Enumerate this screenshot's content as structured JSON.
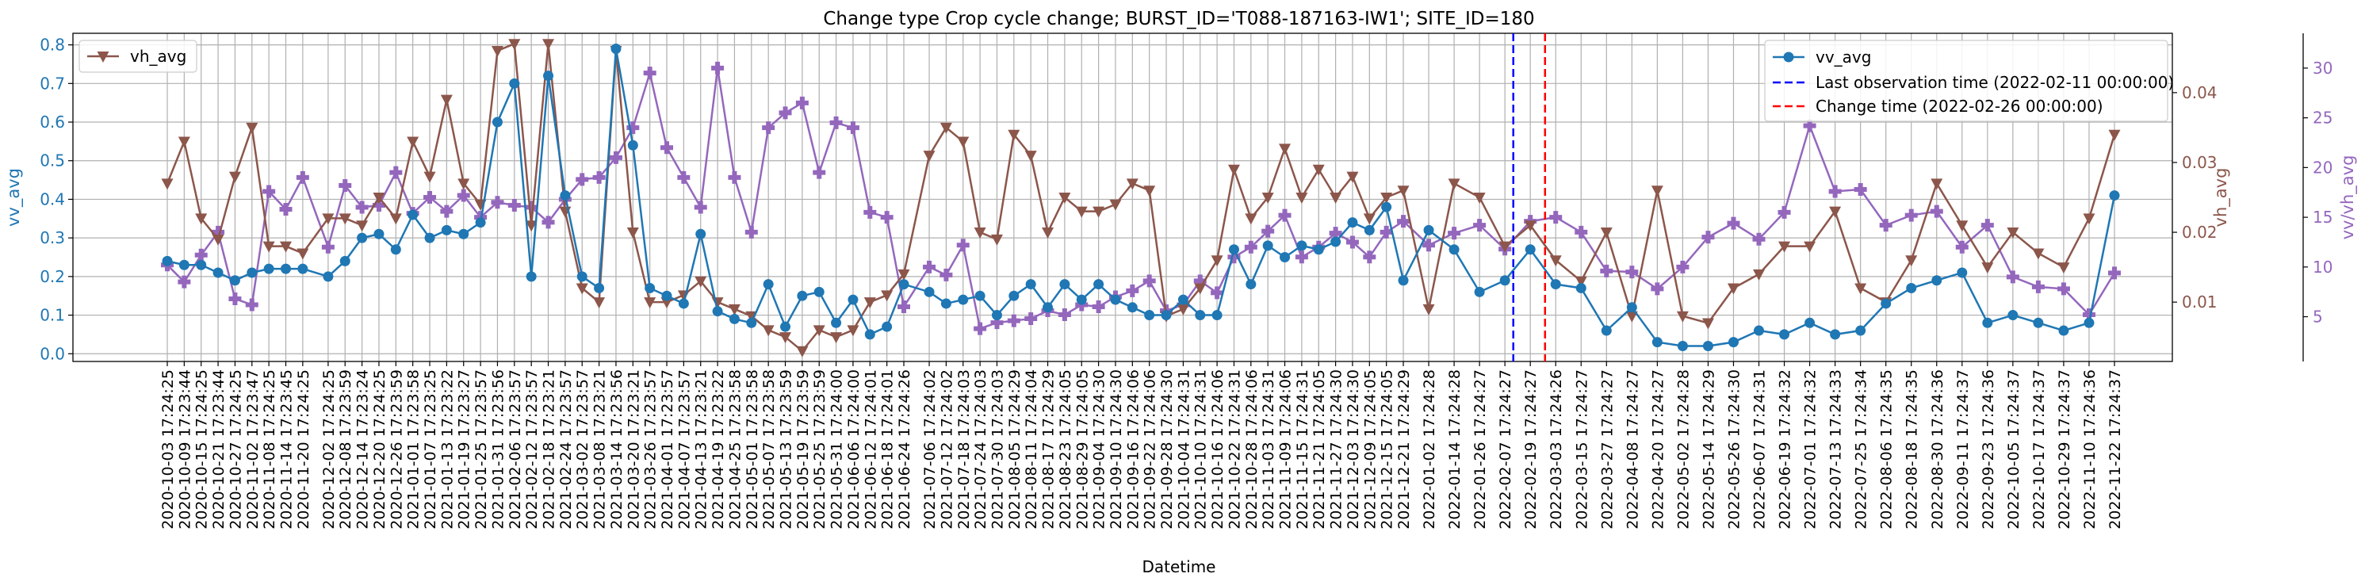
{
  "chart_data": {
    "type": "line",
    "title": "Change type Crop cycle change; BURST_ID='T088-187163-IW1'; SITE_ID=180",
    "xlabel": "Datetime",
    "x_ticks": [
      "2020-10-03 17:24:25",
      "2020-10-09 17:23:44",
      "2020-10-15 17:24:25",
      "2020-10-21 17:23:44",
      "2020-10-27 17:24:25",
      "2020-11-02 17:23:47",
      "2020-11-08 17:24:25",
      "2020-11-14 17:23:45",
      "2020-11-20 17:24:25",
      "2020-12-02 17:24:25",
      "2020-12-08 17:23:59",
      "2020-12-14 17:23:24",
      "2020-12-20 17:24:25",
      "2020-12-26 17:23:59",
      "2021-01-01 17:23:58",
      "2021-01-07 17:23:25",
      "2021-01-13 17:23:22",
      "2021-01-19 17:23:27",
      "2021-01-25 17:23:57",
      "2021-01-31 17:23:56",
      "2021-02-06 17:23:57",
      "2021-02-12 17:23:57",
      "2021-02-18 17:23:21",
      "2021-02-24 17:23:57",
      "2021-03-02 17:23:57",
      "2021-03-08 17:23:21",
      "2021-03-14 17:23:56",
      "2021-03-20 17:23:21",
      "2021-03-26 17:23:57",
      "2021-04-01 17:23:57",
      "2021-04-07 17:23:57",
      "2021-04-13 17:23:21",
      "2021-04-19 17:23:22",
      "2021-04-25 17:23:58",
      "2021-05-01 17:23:58",
      "2021-05-07 17:23:58",
      "2021-05-13 17:23:59",
      "2021-05-19 17:23:59",
      "2021-05-25 17:23:59",
      "2021-05-31 17:24:00",
      "2021-06-06 17:24:00",
      "2021-06-12 17:24:01",
      "2021-06-18 17:24:01",
      "2021-06-24 17:24:26",
      "2021-07-06 17:24:02",
      "2021-07-12 17:24:02",
      "2021-07-18 17:24:03",
      "2021-07-24 17:24:03",
      "2021-07-30 17:24:03",
      "2021-08-05 17:24:29",
      "2021-08-11 17:24:04",
      "2021-08-17 17:24:29",
      "2021-08-23 17:24:05",
      "2021-08-29 17:24:05",
      "2021-09-04 17:24:30",
      "2021-09-10 17:24:30",
      "2021-09-16 17:24:06",
      "2021-09-22 17:24:06",
      "2021-09-28 17:24:30",
      "2021-10-04 17:24:31",
      "2021-10-10 17:24:31",
      "2021-10-16 17:24:06",
      "2021-10-22 17:24:31",
      "2021-10-28 17:24:06",
      "2021-11-03 17:24:31",
      "2021-11-09 17:24:06",
      "2021-11-15 17:24:31",
      "2021-11-21 17:24:05",
      "2021-11-27 17:24:30",
      "2021-12-03 17:24:30",
      "2021-12-09 17:24:05",
      "2021-12-15 17:24:05",
      "2021-12-21 17:24:29",
      "2022-01-02 17:24:28",
      "2022-01-14 17:24:28",
      "2022-01-26 17:24:27",
      "2022-02-07 17:24:27",
      "2022-02-19 17:24:27",
      "2022-03-03 17:24:26",
      "2022-03-15 17:24:27",
      "2022-03-27 17:24:27",
      "2022-04-08 17:24:27",
      "2022-04-20 17:24:27",
      "2022-05-02 17:24:28",
      "2022-05-14 17:24:29",
      "2022-05-26 17:24:30",
      "2022-06-07 17:24:31",
      "2022-06-19 17:24:32",
      "2022-07-01 17:24:32",
      "2022-07-13 17:24:33",
      "2022-07-25 17:24:34",
      "2022-08-06 17:24:35",
      "2022-08-18 17:24:35",
      "2022-08-30 17:24:36",
      "2022-09-11 17:24:37",
      "2022-09-23 17:24:36",
      "2022-10-05 17:24:37",
      "2022-10-17 17:24:37",
      "2022-10-29 17:24:37",
      "2022-11-10 17:24:36",
      "2022-11-22 17:24:37"
    ],
    "series": [
      {
        "name": "vv_avg",
        "axis": "left",
        "color": "#1f77b4",
        "marker": "circle",
        "values": [
          0.24,
          0.23,
          0.23,
          0.21,
          0.19,
          0.21,
          0.22,
          0.22,
          0.22,
          0.2,
          0.24,
          0.3,
          0.31,
          0.27,
          0.36,
          0.3,
          0.32,
          0.31,
          0.34,
          0.6,
          0.7,
          0.2,
          0.72,
          0.41,
          0.2,
          0.17,
          0.79,
          0.54,
          0.17,
          0.15,
          0.13,
          0.31,
          0.11,
          0.09,
          0.08,
          0.18,
          0.07,
          0.15,
          0.16,
          0.08,
          0.14,
          0.05,
          0.07,
          0.18,
          0.16,
          0.13,
          0.14,
          0.15,
          0.1,
          0.15,
          0.18,
          0.12,
          0.18,
          0.14,
          0.18,
          0.14,
          0.12,
          0.1,
          0.1,
          0.14,
          0.1,
          0.1,
          0.27,
          0.18,
          0.28,
          0.25,
          0.28,
          0.27,
          0.29,
          0.34,
          0.32,
          0.38,
          0.19,
          0.32,
          0.27,
          0.16,
          0.19,
          0.27,
          0.18,
          0.17,
          0.06,
          0.12,
          0.03,
          0.02,
          0.02,
          0.03,
          0.06,
          0.05,
          0.08,
          0.05,
          0.06,
          0.13,
          0.17,
          0.19,
          0.21,
          0.08,
          0.1,
          0.08,
          0.06,
          0.08,
          0.41
        ]
      },
      {
        "name": "vh_avg",
        "axis": "right-inner",
        "color": "#8c564b",
        "marker": "triangle_down",
        "values": [
          0.027,
          0.033,
          0.022,
          0.019,
          0.028,
          0.035,
          0.018,
          0.018,
          0.017,
          0.022,
          0.022,
          0.021,
          0.025,
          0.022,
          0.033,
          0.028,
          0.039,
          0.027,
          0.024,
          0.046,
          0.047,
          0.021,
          0.047,
          0.023,
          0.012,
          0.01,
          0.046,
          0.02,
          0.01,
          0.01,
          0.011,
          0.013,
          0.01,
          0.009,
          0.008,
          0.006,
          0.005,
          0.003,
          0.006,
          0.005,
          0.006,
          0.01,
          0.011,
          0.014,
          0.031,
          0.035,
          0.033,
          0.02,
          0.019,
          0.034,
          0.031,
          0.02,
          0.025,
          0.023,
          0.023,
          0.024,
          0.027,
          0.026,
          0.008,
          0.009,
          0.012,
          0.016,
          0.029,
          0.022,
          0.025,
          0.032,
          0.025,
          0.029,
          0.025,
          0.028,
          0.022,
          0.025,
          0.026,
          0.009,
          0.027,
          0.025,
          0.018,
          0.021,
          0.016,
          0.013,
          0.02,
          0.008,
          0.026,
          0.008,
          0.007,
          0.012,
          0.014,
          0.018,
          0.018,
          0.023,
          0.012,
          0.01,
          0.016,
          0.027,
          0.021,
          0.015,
          0.02,
          0.017,
          0.015,
          0.022,
          0.034
        ]
      },
      {
        "name": "vv/vh_avg",
        "axis": "right-outer",
        "color": "#9467bd",
        "marker": "plus",
        "values": [
          10.2,
          8.5,
          11.2,
          13.5,
          6.8,
          6.2,
          17.6,
          15.8,
          19.0,
          12.0,
          18.2,
          16.0,
          16.2,
          19.5,
          15.4,
          17.0,
          15.6,
          17.2,
          15.0,
          16.5,
          16.2,
          16.0,
          14.5,
          16.8,
          18.8,
          19.0,
          21.0,
          24.0,
          29.5,
          22.0,
          19.0,
          16.0,
          30.0,
          19.0,
          13.5,
          24.0,
          25.5,
          26.5,
          19.5,
          24.5,
          24.0,
          15.5,
          15.0,
          6.0,
          10.0,
          9.2,
          12.2,
          3.8,
          4.4,
          4.6,
          4.8,
          5.6,
          5.2,
          6.2,
          6.0,
          7.0,
          7.6,
          8.6,
          5.6,
          6.2,
          8.6,
          7.4,
          11.0,
          12.0,
          13.6,
          15.2,
          11.0,
          12.0,
          13.4,
          12.5,
          11.0,
          13.5,
          14.6,
          12.2,
          13.4,
          14.2,
          11.8,
          14.6,
          15.0,
          13.5,
          9.6,
          9.5,
          7.8,
          10.0,
          13.0,
          14.4,
          12.8,
          15.5,
          24.2,
          17.6,
          17.8,
          14.2,
          15.2,
          15.6,
          12.0,
          14.2,
          9.0,
          8.0,
          7.8,
          5.2,
          9.4
        ]
      }
    ],
    "ylabel_left": "vv_avg",
    "ylim_left": [
      -0.02,
      0.83
    ],
    "yticks_left": [
      "0.0",
      "0.1",
      "0.2",
      "0.3",
      "0.4",
      "0.5",
      "0.6",
      "0.7",
      "0.8"
    ],
    "ylabel_right": "vh_avg",
    "ylim_right": [
      0.0015,
      0.0485
    ],
    "yticks_right": [
      "0.01",
      "0.02",
      "0.03",
      "0.04"
    ],
    "ylabel_right2": "vv/vh_avg",
    "ylim_right2": [
      0.5,
      33.5
    ],
    "yticks_right2": [
      "5",
      "10",
      "15",
      "20",
      "25",
      "30"
    ],
    "vlines": [
      {
        "label": "Last observation time (2022-02-11 00:00:00)",
        "color": "#0000ff",
        "style": "dashed",
        "after_tick": 76,
        "fraction": 0.33
      },
      {
        "label": "Change time (2022-02-26 00:00:00)",
        "color": "#ff0000",
        "style": "dashed",
        "after_tick": 77,
        "fraction": 0.58
      }
    ],
    "legend_left": {
      "placement": "top-left",
      "entries": [
        "vh_avg"
      ]
    },
    "legend_right": {
      "placement": "top-right",
      "entries": [
        "vv_avg",
        "Last observation time (2022-02-11 00:00:00)",
        "Change time (2022-02-26 00:00:00)"
      ]
    },
    "grid": true
  }
}
